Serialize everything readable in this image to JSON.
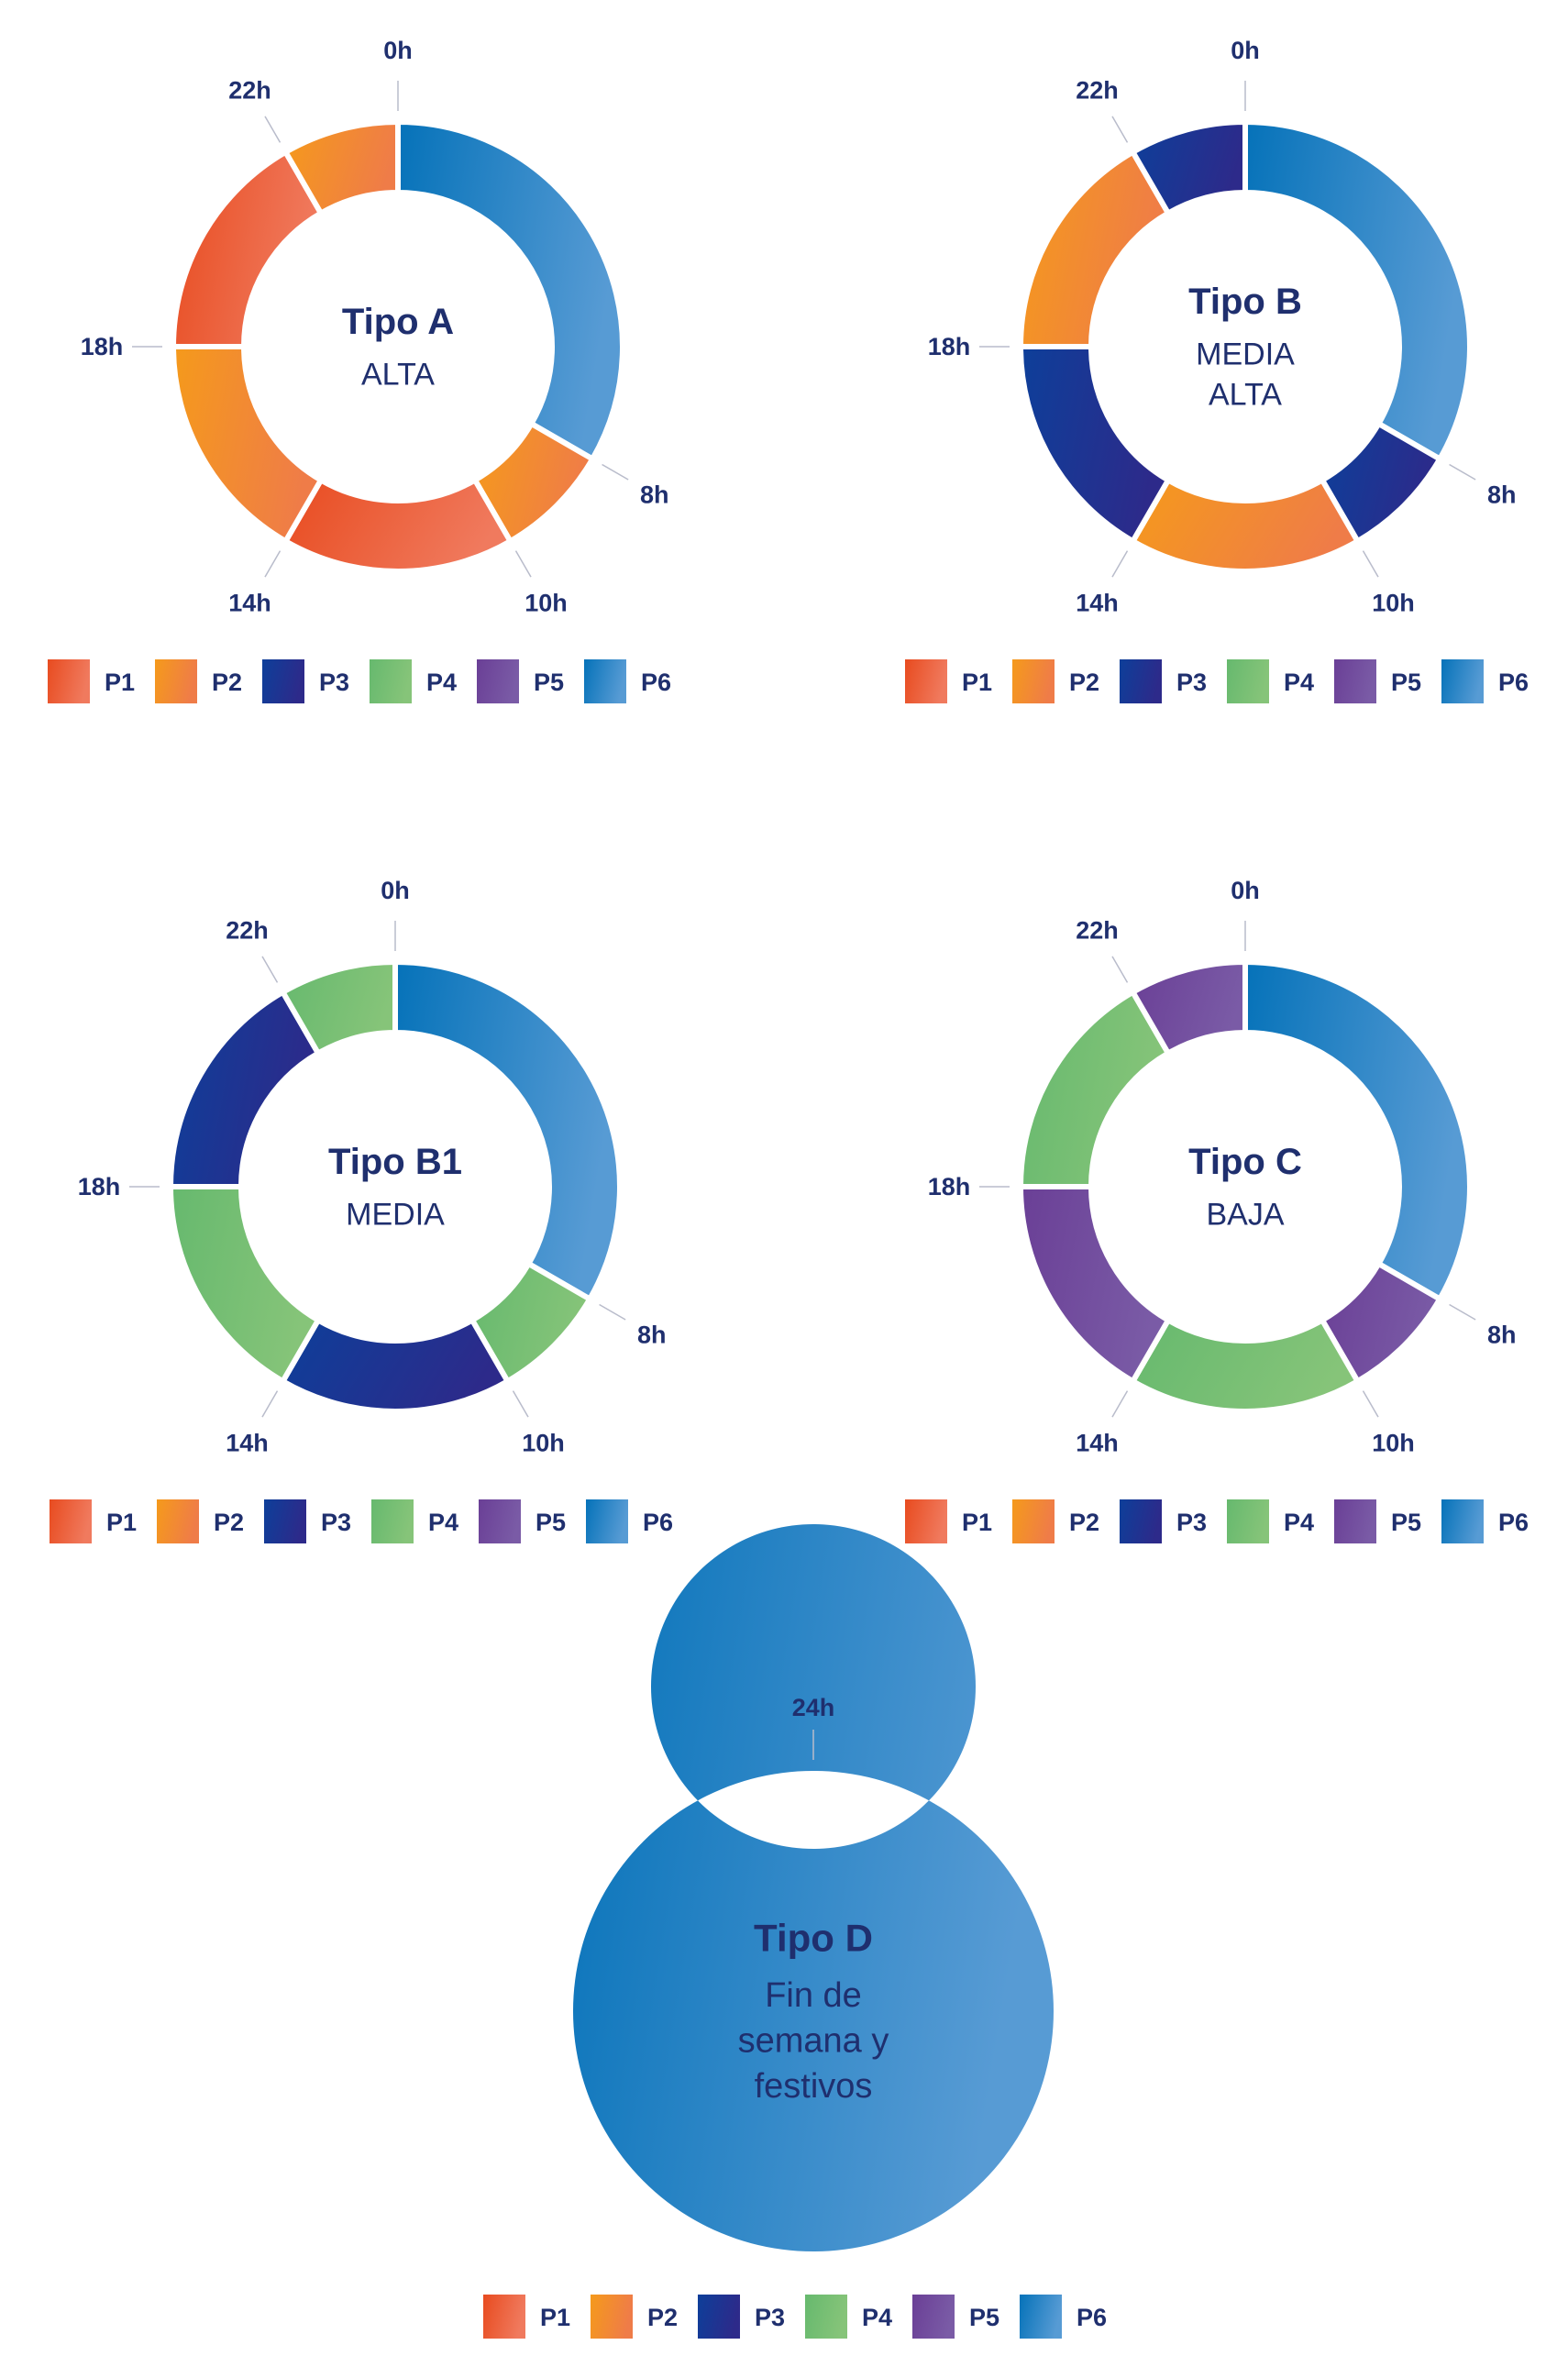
{
  "colors": {
    "P1": [
      "#e84b1f",
      "#f07a5e"
    ],
    "P2": [
      "#f59a1b",
      "#ef7c48"
    ],
    "P3": [
      "#0d3f9a",
      "#2d2a8a"
    ],
    "P4": [
      "#66b96e",
      "#86c479"
    ],
    "P5": [
      "#6a3f96",
      "#7a5ba6"
    ],
    "P6": [
      "#0572b9",
      "#579bd4"
    ],
    "text": "#1f2f6e"
  },
  "chart_data": [
    {
      "type": "donut",
      "title": "Tipo A",
      "subtitle": [
        "ALTA"
      ],
      "ticks": [
        "0h",
        "8h",
        "10h",
        "14h",
        "18h",
        "22h"
      ],
      "segments": [
        {
          "from": 0,
          "to": 8,
          "period": "P6"
        },
        {
          "from": 8,
          "to": 10,
          "period": "P2"
        },
        {
          "from": 10,
          "to": 14,
          "period": "P1"
        },
        {
          "from": 14,
          "to": 18,
          "period": "P2"
        },
        {
          "from": 18,
          "to": 22,
          "period": "P1"
        },
        {
          "from": 22,
          "to": 24,
          "period": "P2"
        }
      ],
      "legend": [
        "P1",
        "P2",
        "P3",
        "P4",
        "P5",
        "P6"
      ]
    },
    {
      "type": "donut",
      "title": "Tipo B",
      "subtitle": [
        "MEDIA",
        "ALTA"
      ],
      "ticks": [
        "0h",
        "8h",
        "10h",
        "14h",
        "18h",
        "22h"
      ],
      "segments": [
        {
          "from": 0,
          "to": 8,
          "period": "P6"
        },
        {
          "from": 8,
          "to": 10,
          "period": "P3"
        },
        {
          "from": 10,
          "to": 14,
          "period": "P2"
        },
        {
          "from": 14,
          "to": 18,
          "period": "P3"
        },
        {
          "from": 18,
          "to": 22,
          "period": "P2"
        },
        {
          "from": 22,
          "to": 24,
          "period": "P3"
        }
      ],
      "legend": [
        "P1",
        "P2",
        "P3",
        "P4",
        "P5",
        "P6"
      ]
    },
    {
      "type": "donut",
      "title": "Tipo B1",
      "subtitle": [
        "MEDIA"
      ],
      "ticks": [
        "0h",
        "8h",
        "10h",
        "14h",
        "18h",
        "22h"
      ],
      "segments": [
        {
          "from": 0,
          "to": 8,
          "period": "P6"
        },
        {
          "from": 8,
          "to": 10,
          "period": "P4"
        },
        {
          "from": 10,
          "to": 14,
          "period": "P3"
        },
        {
          "from": 14,
          "to": 18,
          "period": "P4"
        },
        {
          "from": 18,
          "to": 22,
          "period": "P3"
        },
        {
          "from": 22,
          "to": 24,
          "period": "P4"
        }
      ],
      "legend": [
        "P1",
        "P2",
        "P3",
        "P4",
        "P5",
        "P6"
      ]
    },
    {
      "type": "donut",
      "title": "Tipo C",
      "subtitle": [
        "BAJA"
      ],
      "ticks": [
        "0h",
        "8h",
        "10h",
        "14h",
        "18h",
        "22h"
      ],
      "segments": [
        {
          "from": 0,
          "to": 8,
          "period": "P6"
        },
        {
          "from": 8,
          "to": 10,
          "period": "P5"
        },
        {
          "from": 10,
          "to": 14,
          "period": "P4"
        },
        {
          "from": 14,
          "to": 18,
          "period": "P5"
        },
        {
          "from": 18,
          "to": 22,
          "period": "P4"
        },
        {
          "from": 22,
          "to": 24,
          "period": "P5"
        }
      ],
      "legend": [
        "P1",
        "P2",
        "P3",
        "P4",
        "P5",
        "P6"
      ]
    },
    {
      "type": "donut",
      "title": "Tipo D",
      "subtitle": [
        "Fin de",
        "semana y",
        "festivos"
      ],
      "ticks": [
        "24h"
      ],
      "segments": [
        {
          "from": 0,
          "to": 24,
          "period": "P6"
        }
      ],
      "legend": [
        "P1",
        "P2",
        "P3",
        "P4",
        "P5",
        "P6"
      ]
    }
  ]
}
